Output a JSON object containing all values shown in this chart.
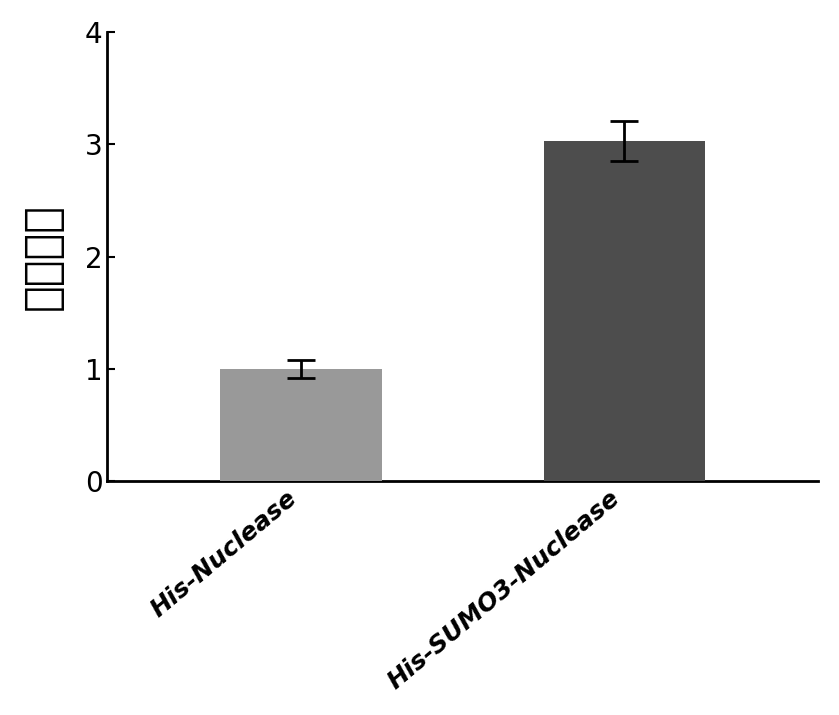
{
  "categories": [
    "His-Nuclease",
    "His-SUMO3-Nuclease"
  ],
  "values": [
    1.0,
    3.03
  ],
  "errors": [
    0.08,
    0.18
  ],
  "bar_colors": [
    "#999999",
    "#4d4d4d"
  ],
  "ylabel": "相对活性",
  "ylim": [
    0,
    4
  ],
  "yticks": [
    0,
    1,
    2,
    3,
    4
  ],
  "background_color": "#ffffff",
  "bar_width": 0.5,
  "error_capsize": 10,
  "error_linewidth": 2.0,
  "error_color": "black",
  "ylabel_fontsize": 32,
  "tick_fontsize": 20,
  "xtick_fontsize": 18,
  "spine_linewidth": 2.0
}
